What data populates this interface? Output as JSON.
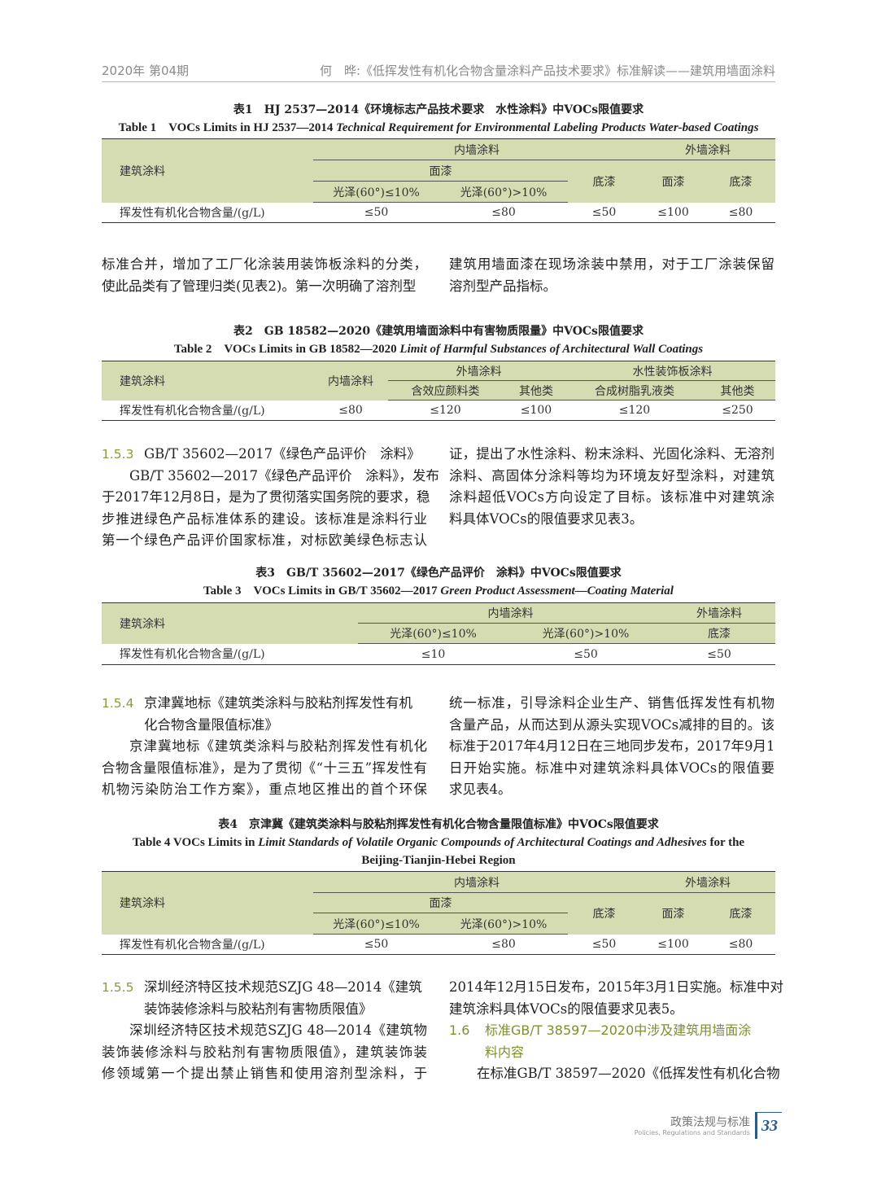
{
  "header": {
    "issue": "2020年 第04期",
    "title": "何　晔:《低挥发性有机化合物含量涂料产品技术要求》标准解读——建筑用墙面涂料"
  },
  "table1": {
    "caption_cn": "表1　HJ 2537—2014《环境标志产品技术要求　水性涂料》中VOCs限值要求",
    "caption_en_bold": "Table 1　VOCs Limits in HJ 2537—2014 ",
    "caption_en_italic": "Technical Requirement for Environmental Labeling Products Water-based Coatings",
    "h_category": "建筑涂料",
    "h_interior": "内墙涂料",
    "h_exterior": "外墙涂料",
    "h_topcoat": "面漆",
    "h_gloss_low": "光泽(60°)≤10%",
    "h_gloss_high": "光泽(60°)>10%",
    "h_primer": "底漆",
    "h_ext_topcoat": "面漆",
    "h_ext_primer": "底漆",
    "row_label": "挥发性有机化合物含量/(g/L)",
    "values": [
      "≤50",
      "≤80",
      "≤50",
      "≤100",
      "≤80"
    ]
  },
  "paraA": {
    "left": [
      "标准合并，增加了工厂化涂装用装饰板涂料的分类，",
      "使此品类有了管理归类(见表2)。第一次明确了溶剂型"
    ],
    "right": [
      "建筑用墙面漆在现场涂装中禁用，对于工厂涂装保留",
      "溶剂型产品指标。"
    ]
  },
  "table2": {
    "caption_cn": "表2　GB 18582—2020《建筑用墙面涂料中有害物质限量》中VOCs限值要求",
    "caption_en_bold": "Table 2　VOCs Limits in GB 18582—2020 ",
    "caption_en_italic": "Limit of Harmful Substances of Architectural Wall Coatings",
    "h_category": "建筑涂料",
    "h_interior": "内墙涂料",
    "h_exterior": "外墙涂料",
    "h_effect": "含效应颜料类",
    "h_other1": "其他类",
    "h_board": "水性装饰板涂料",
    "h_resin": "合成树脂乳液类",
    "h_other2": "其他类",
    "row_label": "挥发性有机化合物含量/(g/L)",
    "values": [
      "≤80",
      "≤120",
      "≤100",
      "≤120",
      "≤250"
    ]
  },
  "s153": {
    "num": "1.5.3",
    "title": "GB/T 35602—2017《绿色产品评价　涂料》",
    "left": [
      "GB/T 35602—2017《绿色产品评价　涂料》，发布",
      "于2017年12月8日，是为了贯彻落实国务院的要求，稳",
      "步推进绿色产品标准体系的建设。该标准是涂料行业",
      "第一个绿色产品评价国家标准，对标欧美绿色标志认"
    ],
    "right": [
      "证，提出了水性涂料、粉末涂料、光固化涂料、无溶剂",
      "涂料、高固体分涂料等均为环境友好型涂料，对建筑",
      "涂料超低VOCs方向设定了目标。该标准中对建筑涂",
      "料具体VOCs的限值要求见表3。"
    ]
  },
  "table3": {
    "caption_cn": "表3　GB/T 35602—2017《绿色产品评价　涂料》中VOCs限值要求",
    "caption_en_bold": "Table 3　VOCs Limits in GB/T 35602—2017 ",
    "caption_en_italic": "Green Product Assessment—Coating Material",
    "h_category": "建筑涂料",
    "h_interior": "内墙涂料",
    "h_exterior": "外墙涂料",
    "h_gloss_low": "光泽(60°)≤10%",
    "h_gloss_high": "光泽(60°)>10%",
    "h_primer": "底漆",
    "row_label": "挥发性有机化合物含量/(g/L)",
    "values": [
      "≤10",
      "≤50",
      "≤50"
    ]
  },
  "s154": {
    "num": "1.5.4",
    "title": [
      "京津冀地标《建筑类涂料与胶粘剂挥发性有机",
      "化合物含量限值标准》"
    ],
    "left": [
      "京津冀地标《建筑类涂料与胶粘剂挥发性有机化",
      "合物含量限值标准》，是为了贯彻《“十三五”挥发性有",
      "机物污染防治工作方案》，重点地区推出的首个环保"
    ],
    "right": [
      "统一标准，引导涂料企业生产、销售低挥发性有机物",
      "含量产品，从而达到从源头实现VOCs减排的目的。该",
      "标准于2017年4月12日在三地同步发布，2017年9月1",
      "日开始实施。标准中对建筑涂料具体VOCs的限值要",
      "求见表4。"
    ]
  },
  "table4": {
    "caption_cn": "表4　京津冀《建筑类涂料与胶粘剂挥发性有机化合物含量限值标准》中VOCs限值要求",
    "caption_en_bold": "Table 4  VOCs Limits in ",
    "caption_en_italic": "Limit Standards of Volatile Organic Compounds of Architectural Coatings and Adhesives",
    "caption_en_tail": " for the",
    "caption_en_line2": "Beijing-Tianjin-Hebei Region",
    "h_category": "建筑涂料",
    "h_interior": "内墙涂料",
    "h_exterior": "外墙涂料",
    "h_topcoat": "面漆",
    "h_gloss_low": "光泽(60°)≤10%",
    "h_gloss_high": "光泽(60°)>10%",
    "h_primer": "底漆",
    "h_ext_topcoat": "面漆",
    "h_ext_primer": "底漆",
    "row_label": "挥发性有机化合物含量/(g/L)",
    "values": [
      "≤50",
      "≤80",
      "≤50",
      "≤100",
      "≤80"
    ]
  },
  "s155": {
    "num": "1.5.5",
    "title": [
      "深圳经济特区技术规范SZJG 48—2014《建筑",
      "装饰装修涂料与胶粘剂有害物质限值》"
    ],
    "left": [
      "深圳经济特区技术规范SZJG 48—2014《建筑物",
      "装饰装修涂料与胶粘剂有害物质限值》，建筑装饰装",
      "修领域第一个提出禁止销售和使用溶剂型涂料，于"
    ],
    "right": [
      "2014年12月15日发布，2015年3月1日实施。标准中对",
      "建筑涂料具体VOCs的限值要求见表5。"
    ]
  },
  "s16": {
    "num": "1.6",
    "title": [
      "标准GB/T 38597—2020中涉及建筑用墙面涂",
      "料内容"
    ],
    "body": [
      "在标准GB/T 38597—2020《低挥发性有机化合物"
    ]
  },
  "footer": {
    "section_cn": "政策法规与标准",
    "section_en": "Policies, Regulations and Standards",
    "page": "33"
  },
  "colors": {
    "table_header_bg": "#d6dcb2",
    "heading_green": "#7e8f2c",
    "page_badge": "#2e5a8a"
  }
}
